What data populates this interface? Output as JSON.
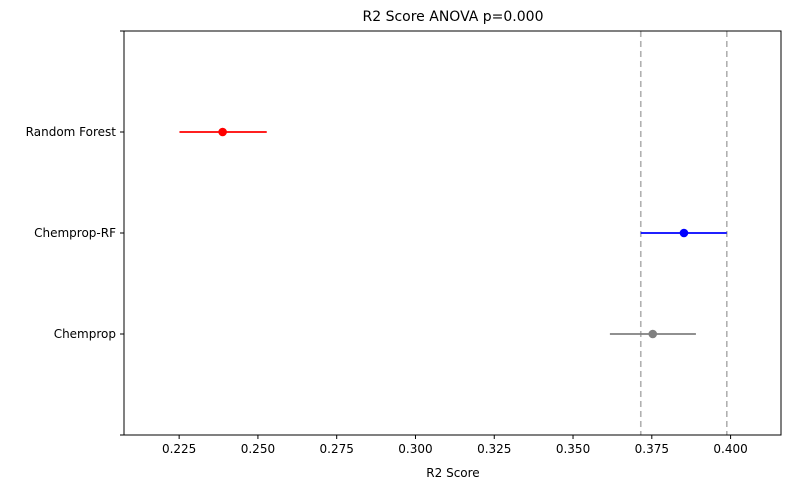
{
  "chart_data": {
    "type": "scatter",
    "title": "R2 Score ANOVA p=0.000",
    "xlabel": "R2 Score",
    "ylabel": "",
    "xlim": [
      0.2075,
      0.416
    ],
    "x_ticks": [
      "0.225",
      "0.250",
      "0.275",
      "0.300",
      "0.325",
      "0.350",
      "0.375",
      "0.400"
    ],
    "categories": [
      "Random Forest",
      "Chemprop-RF",
      "Chemprop"
    ],
    "series": [
      {
        "category": "Random Forest",
        "mean": 0.2388,
        "ci": [
          0.2251,
          0.2528
        ],
        "color": "#ff0000"
      },
      {
        "category": "Chemprop-RF",
        "mean": 0.3852,
        "ci": [
          0.3715,
          0.3988
        ],
        "color": "#0000ff"
      },
      {
        "category": "Chemprop",
        "mean": 0.3753,
        "ci": [
          0.3617,
          0.389
        ],
        "color": "#808080"
      }
    ],
    "reference_lines": [
      0.3715,
      0.3988
    ],
    "reference_line_color": "#b0b0b0",
    "grid": false,
    "legend": "none"
  }
}
